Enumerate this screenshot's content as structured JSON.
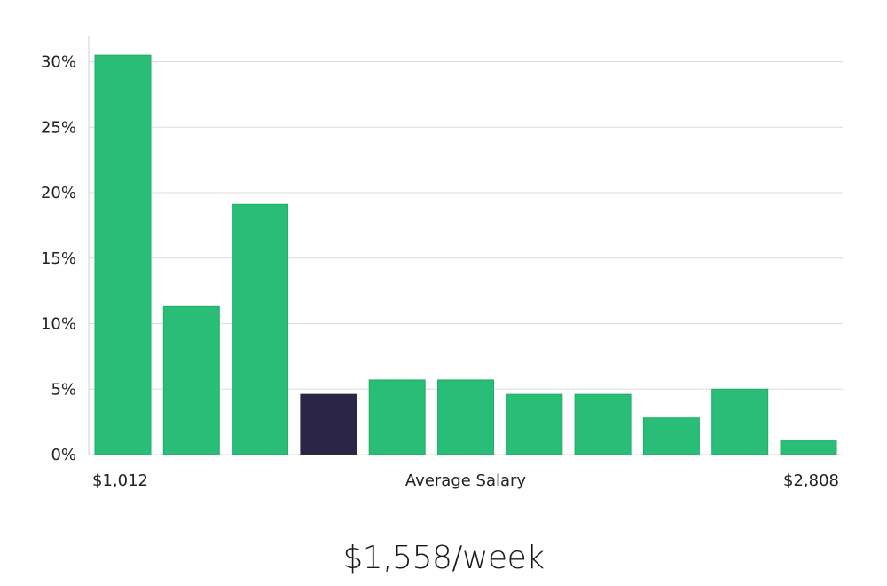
{
  "chart_data": {
    "type": "bar",
    "xlabel": "Average Salary",
    "x_range_labels": {
      "min": "$1,012",
      "max": "$2,808"
    },
    "ylim": [
      0,
      32
    ],
    "yticks": [
      0,
      5,
      10,
      15,
      20,
      25,
      30
    ],
    "ytick_labels": [
      "0%",
      "5%",
      "10%",
      "15%",
      "20%",
      "25%",
      "30%"
    ],
    "grid": true,
    "values": [
      30.5,
      11.3,
      19.1,
      4.6,
      5.7,
      5.7,
      4.6,
      4.6,
      2.8,
      5.0,
      1.1
    ],
    "highlight_index": 3,
    "colors": {
      "bar": "#2abd77",
      "bar_stroke": "#1fae68",
      "highlight": "#2b2647"
    }
  },
  "summary": {
    "salary_text": "$1,558/week"
  }
}
